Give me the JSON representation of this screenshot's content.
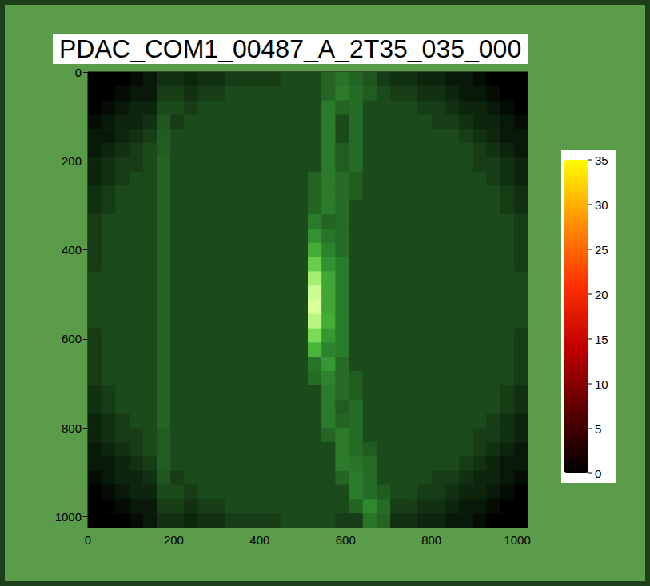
{
  "chart_data": {
    "type": "heatmap",
    "title": "PDAC_COM1_00487_A_2T35_035_000",
    "xlim": [
      0,
      1024
    ],
    "xticks": [
      0,
      200,
      400,
      600,
      800,
      1000
    ],
    "ylim": [
      1024,
      0
    ],
    "yticks": [
      0,
      200,
      400,
      600,
      800,
      1000
    ],
    "grid": false,
    "x_bins": [
      0,
      32,
      64,
      96,
      128,
      160,
      192,
      224,
      256,
      288,
      320,
      352,
      384,
      416,
      448,
      480,
      512,
      544,
      576,
      608,
      640,
      672,
      704,
      736,
      768,
      800,
      832,
      864,
      896,
      928,
      960,
      992,
      1024
    ],
    "y_bins": [
      0,
      32,
      64,
      96,
      128,
      160,
      192,
      224,
      256,
      288,
      320,
      352,
      384,
      416,
      448,
      480,
      512,
      544,
      576,
      608,
      640,
      672,
      704,
      736,
      768,
      800,
      832,
      864,
      896,
      928,
      960,
      992,
      1024
    ],
    "cells": [
      [
        0,
        0,
        0,
        1,
        2,
        4,
        4,
        3,
        4,
        4,
        5,
        5,
        5,
        5,
        6,
        6,
        6,
        9,
        11,
        9,
        7,
        5,
        4,
        4,
        3,
        3,
        2,
        2,
        1,
        0,
        0,
        0
      ],
      [
        0,
        0,
        1,
        2,
        2,
        5,
        5,
        4,
        5,
        5,
        6,
        6,
        6,
        6,
        6,
        6,
        6,
        9,
        12,
        10,
        8,
        6,
        5,
        5,
        4,
        4,
        3,
        2,
        2,
        1,
        0,
        0
      ],
      [
        0,
        1,
        2,
        3,
        3,
        6,
        6,
        5,
        6,
        6,
        6,
        6,
        6,
        6,
        6,
        6,
        6,
        12,
        9,
        10,
        6,
        6,
        6,
        6,
        5,
        5,
        4,
        3,
        3,
        2,
        1,
        0
      ],
      [
        1,
        2,
        3,
        3,
        4,
        7,
        5,
        6,
        6,
        6,
        6,
        6,
        6,
        6,
        6,
        6,
        6,
        12,
        6,
        10,
        6,
        6,
        6,
        6,
        6,
        5,
        5,
        4,
        3,
        3,
        2,
        1
      ],
      [
        2,
        2,
        3,
        4,
        5,
        8,
        6,
        6,
        6,
        6,
        6,
        6,
        6,
        6,
        6,
        6,
        6,
        12,
        6,
        10,
        6,
        6,
        6,
        6,
        6,
        6,
        6,
        5,
        4,
        3,
        2,
        2
      ],
      [
        2,
        3,
        4,
        5,
        6,
        8,
        6,
        6,
        6,
        6,
        6,
        6,
        6,
        6,
        6,
        6,
        6,
        12,
        8,
        10,
        6,
        6,
        6,
        6,
        6,
        6,
        6,
        6,
        5,
        4,
        3,
        2
      ],
      [
        3,
        4,
        5,
        5,
        6,
        9,
        6,
        6,
        6,
        6,
        6,
        6,
        6,
        6,
        6,
        6,
        6,
        12,
        8,
        10,
        6,
        6,
        6,
        6,
        6,
        6,
        6,
        6,
        5,
        5,
        4,
        3
      ],
      [
        3,
        4,
        5,
        6,
        6,
        9,
        6,
        6,
        6,
        6,
        6,
        6,
        6,
        6,
        6,
        6,
        9,
        12,
        10,
        8,
        6,
        6,
        6,
        6,
        6,
        6,
        6,
        6,
        6,
        5,
        4,
        3
      ],
      [
        4,
        5,
        6,
        6,
        6,
        9,
        6,
        6,
        6,
        6,
        6,
        6,
        6,
        6,
        6,
        6,
        9,
        12,
        10,
        8,
        6,
        6,
        6,
        6,
        6,
        6,
        6,
        6,
        6,
        6,
        5,
        4
      ],
      [
        4,
        5,
        6,
        6,
        6,
        9,
        6,
        6,
        6,
        6,
        6,
        6,
        6,
        6,
        6,
        6,
        9,
        12,
        10,
        6,
        6,
        6,
        6,
        6,
        6,
        6,
        6,
        6,
        6,
        6,
        5,
        4
      ],
      [
        5,
        6,
        6,
        6,
        6,
        9,
        6,
        6,
        6,
        6,
        6,
        6,
        6,
        6,
        6,
        6,
        12,
        9,
        10,
        6,
        6,
        6,
        6,
        6,
        6,
        6,
        6,
        6,
        6,
        6,
        6,
        5
      ],
      [
        5,
        6,
        6,
        6,
        6,
        9,
        6,
        6,
        6,
        6,
        6,
        6,
        6,
        6,
        6,
        6,
        15,
        11,
        10,
        6,
        6,
        6,
        6,
        6,
        6,
        6,
        6,
        6,
        6,
        6,
        6,
        5
      ],
      [
        5,
        6,
        6,
        6,
        6,
        9,
        6,
        6,
        6,
        6,
        6,
        6,
        6,
        6,
        6,
        6,
        19,
        13,
        10,
        6,
        6,
        6,
        6,
        6,
        6,
        6,
        6,
        6,
        6,
        6,
        6,
        5
      ],
      [
        5,
        6,
        6,
        6,
        6,
        9,
        6,
        6,
        6,
        6,
        6,
        6,
        6,
        6,
        6,
        6,
        24,
        15,
        12,
        6,
        6,
        6,
        6,
        6,
        6,
        6,
        6,
        6,
        6,
        6,
        6,
        5
      ],
      [
        6,
        6,
        6,
        6,
        6,
        9,
        6,
        6,
        6,
        6,
        6,
        6,
        6,
        6,
        6,
        6,
        30,
        18,
        12,
        6,
        6,
        6,
        6,
        6,
        6,
        6,
        6,
        6,
        6,
        6,
        6,
        6
      ],
      [
        6,
        6,
        6,
        6,
        6,
        9,
        6,
        6,
        6,
        6,
        6,
        6,
        6,
        6,
        6,
        6,
        34,
        18,
        12,
        6,
        6,
        6,
        6,
        6,
        6,
        6,
        6,
        6,
        6,
        6,
        6,
        6
      ],
      [
        6,
        6,
        6,
        6,
        6,
        9,
        6,
        6,
        6,
        6,
        6,
        6,
        6,
        6,
        6,
        6,
        35,
        18,
        12,
        6,
        6,
        6,
        6,
        6,
        6,
        6,
        6,
        6,
        6,
        6,
        6,
        6
      ],
      [
        6,
        6,
        6,
        6,
        6,
        9,
        6,
        6,
        6,
        6,
        6,
        6,
        6,
        6,
        6,
        6,
        32,
        19,
        12,
        6,
        6,
        6,
        6,
        6,
        6,
        6,
        6,
        6,
        6,
        6,
        6,
        6
      ],
      [
        5,
        6,
        6,
        6,
        6,
        9,
        6,
        6,
        6,
        6,
        6,
        6,
        6,
        6,
        6,
        6,
        26,
        16,
        12,
        6,
        6,
        6,
        6,
        6,
        6,
        6,
        6,
        6,
        6,
        6,
        6,
        5
      ],
      [
        5,
        6,
        6,
        6,
        6,
        9,
        6,
        6,
        6,
        6,
        6,
        6,
        6,
        6,
        6,
        6,
        20,
        13,
        12,
        6,
        6,
        6,
        6,
        6,
        6,
        6,
        6,
        6,
        6,
        6,
        6,
        5
      ],
      [
        5,
        6,
        6,
        6,
        6,
        9,
        6,
        6,
        6,
        6,
        6,
        6,
        6,
        6,
        6,
        6,
        11,
        16,
        10,
        6,
        6,
        6,
        6,
        6,
        6,
        6,
        6,
        6,
        6,
        6,
        6,
        5
      ],
      [
        5,
        6,
        6,
        6,
        6,
        9,
        6,
        6,
        6,
        6,
        6,
        6,
        6,
        6,
        6,
        6,
        10,
        13,
        10,
        8,
        6,
        6,
        6,
        6,
        6,
        6,
        6,
        6,
        6,
        6,
        6,
        5
      ],
      [
        4,
        5,
        6,
        6,
        6,
        9,
        6,
        6,
        6,
        6,
        6,
        6,
        6,
        6,
        6,
        6,
        6,
        12,
        10,
        8,
        6,
        6,
        6,
        6,
        6,
        6,
        6,
        6,
        6,
        6,
        5,
        4
      ],
      [
        4,
        5,
        6,
        6,
        6,
        9,
        6,
        6,
        6,
        6,
        6,
        6,
        6,
        6,
        6,
        6,
        6,
        12,
        8,
        10,
        6,
        6,
        6,
        6,
        6,
        6,
        6,
        6,
        6,
        6,
        5,
        4
      ],
      [
        3,
        4,
        5,
        6,
        6,
        9,
        6,
        6,
        6,
        6,
        6,
        6,
        6,
        6,
        6,
        6,
        6,
        12,
        9,
        10,
        6,
        6,
        6,
        6,
        6,
        6,
        6,
        6,
        6,
        5,
        4,
        3
      ],
      [
        3,
        4,
        5,
        5,
        6,
        8,
        6,
        6,
        6,
        6,
        6,
        6,
        6,
        6,
        6,
        6,
        6,
        9,
        12,
        10,
        6,
        6,
        6,
        6,
        6,
        6,
        6,
        6,
        5,
        5,
        4,
        3
      ],
      [
        2,
        3,
        4,
        5,
        6,
        8,
        6,
        6,
        6,
        6,
        6,
        6,
        6,
        6,
        6,
        6,
        6,
        6,
        12,
        10,
        8,
        6,
        6,
        6,
        6,
        6,
        6,
        6,
        5,
        4,
        3,
        2
      ],
      [
        2,
        2,
        3,
        4,
        5,
        8,
        6,
        6,
        6,
        6,
        6,
        6,
        6,
        6,
        6,
        6,
        6,
        6,
        12,
        11,
        10,
        6,
        6,
        6,
        6,
        6,
        6,
        5,
        4,
        3,
        2,
        2
      ],
      [
        1,
        2,
        3,
        3,
        4,
        7,
        5,
        6,
        6,
        6,
        6,
        6,
        6,
        6,
        6,
        6,
        6,
        6,
        9,
        12,
        10,
        6,
        6,
        6,
        6,
        5,
        5,
        4,
        3,
        3,
        2,
        1
      ],
      [
        0,
        1,
        2,
        3,
        3,
        6,
        6,
        5,
        6,
        6,
        6,
        6,
        6,
        6,
        6,
        6,
        6,
        6,
        6,
        12,
        10,
        8,
        6,
        6,
        5,
        5,
        4,
        3,
        3,
        2,
        1,
        0
      ],
      [
        0,
        0,
        1,
        2,
        2,
        5,
        5,
        4,
        5,
        5,
        6,
        6,
        6,
        6,
        6,
        6,
        6,
        6,
        6,
        9,
        14,
        10,
        5,
        5,
        4,
        4,
        3,
        2,
        2,
        1,
        0,
        0
      ],
      [
        0,
        0,
        0,
        1,
        2,
        4,
        4,
        3,
        4,
        4,
        5,
        5,
        5,
        5,
        6,
        6,
        6,
        6,
        5,
        5,
        11,
        9,
        4,
        4,
        3,
        3,
        2,
        2,
        1,
        0,
        0,
        0
      ]
    ],
    "colorbar": {
      "range": [
        0,
        35
      ],
      "ticks": [
        0,
        5,
        10,
        15,
        20,
        25,
        30,
        35
      ]
    }
  }
}
